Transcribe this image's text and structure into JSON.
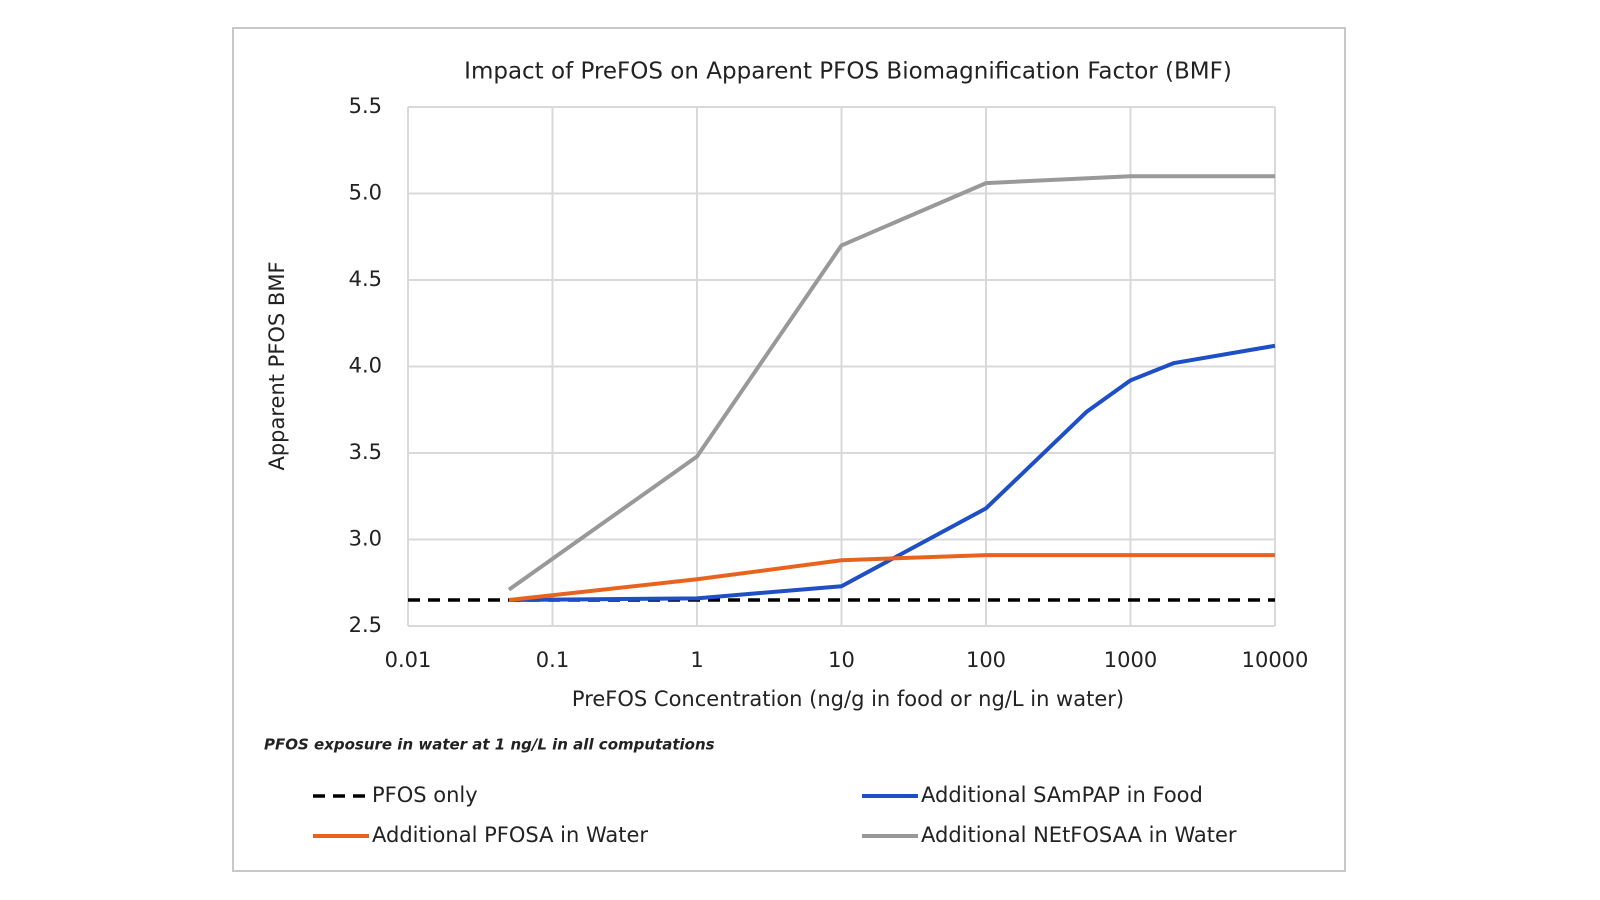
{
  "chart_data": {
    "type": "line",
    "title": "Impact of PreFOS on Apparent PFOS Biomagnification Factor (BMF)",
    "x_label": "PreFOS Concentration (ng/g in food or ng/L in water)",
    "y_label": "Apparent PFOS BMF",
    "annotation": "PFOS exposure in water at 1 ng/L in all computations",
    "x_scale": "log",
    "grid": true,
    "xlim": [
      0.01,
      10000
    ],
    "xticks": [
      0.01,
      0.1,
      1,
      10,
      100,
      1000,
      10000
    ],
    "ylim": [
      2.5,
      5.5
    ],
    "yticks": [
      2.5,
      {
        "value": 3,
        "label": "3.0"
      },
      3.5,
      {
        "value": 4,
        "label": "4.0"
      },
      4.5,
      {
        "value": 5,
        "label": "5.0"
      },
      5.5
    ],
    "series": [
      {
        "name": "PFOS only",
        "color": "#000000",
        "dashed": true,
        "x": [
          0.01,
          10000
        ],
        "values": [
          2.65,
          2.65
        ]
      },
      {
        "name": "Additional SAmPAP in Food",
        "color": "#1f4fc4",
        "x": [
          0.05,
          1,
          10,
          100,
          500,
          1000,
          2000,
          10000
        ],
        "values": [
          2.65,
          2.66,
          2.73,
          3.18,
          3.74,
          3.92,
          4.02,
          4.12
        ]
      },
      {
        "name": "Additional PFOSA in Water",
        "color": "#e8641e",
        "x": [
          0.05,
          1,
          10,
          100,
          10000
        ],
        "values": [
          2.65,
          2.77,
          2.88,
          2.91,
          2.91
        ]
      },
      {
        "name": "Additional NEtFOSAA in Water",
        "color": "#999999",
        "x": [
          0.05,
          1,
          10,
          100,
          1000,
          10000
        ],
        "values": [
          2.71,
          3.48,
          4.7,
          5.06,
          5.1,
          5.1
        ]
      }
    ]
  }
}
